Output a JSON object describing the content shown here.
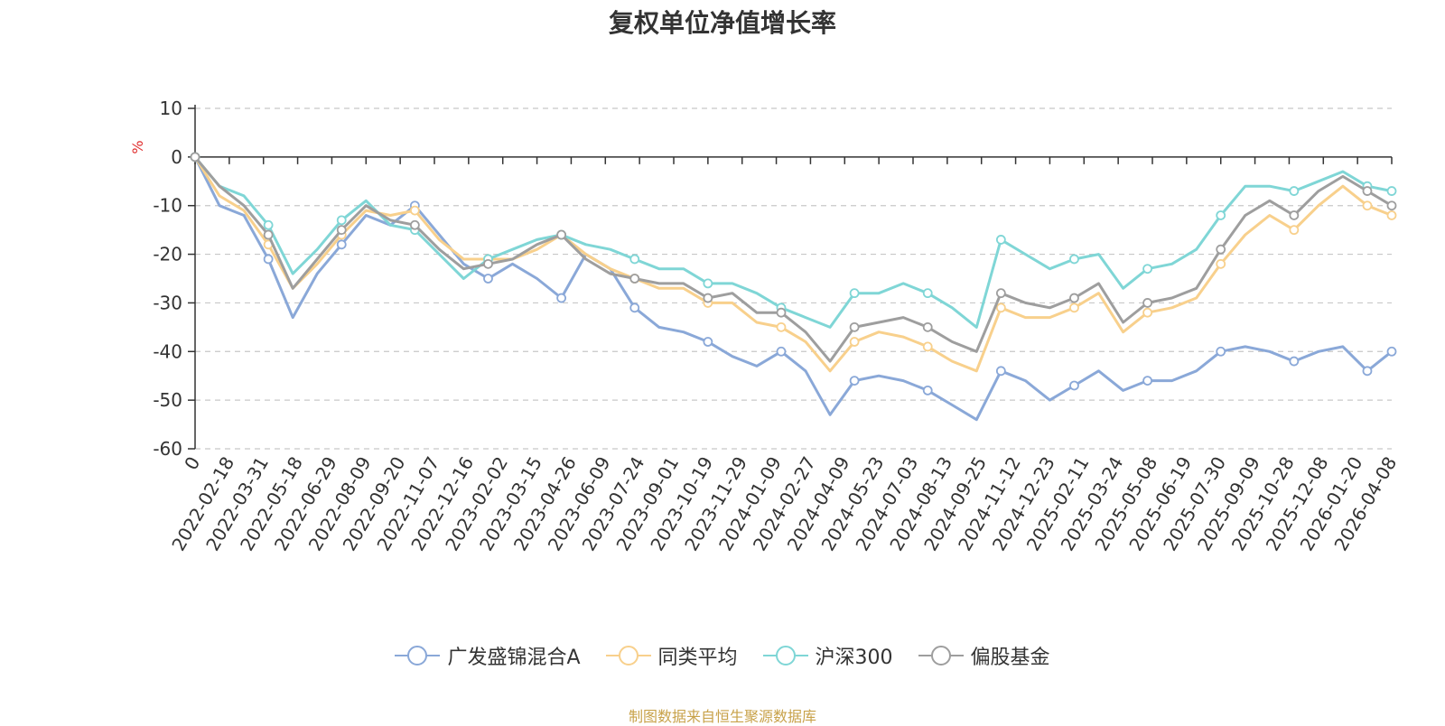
{
  "chart_data": {
    "type": "line",
    "title": "复权单位净值增长率",
    "ylabel": "%",
    "ylim": [
      -60,
      10
    ],
    "yticks": [
      10,
      0,
      -10,
      -20,
      -30,
      -40,
      -50,
      -60
    ],
    "x_tick_labels": [
      "0",
      "2022-02-18",
      "2022-03-31",
      "2022-05-18",
      "2022-06-29",
      "2022-08-09",
      "2022-09-20",
      "2022-11-07",
      "2022-12-16",
      "2023-02-02",
      "2023-03-15",
      "2023-04-26",
      "2023-06-09",
      "2023-07-24",
      "2023-09-01",
      "2023-10-19",
      "2023-11-29",
      "2024-01-09",
      "2024-02-27",
      "2024-04-09",
      "2024-05-23",
      "2024-07-03",
      "2024-08-13",
      "2024-09-25",
      "2024-11-12",
      "2024-12-23",
      "2025-02-11",
      "2025-03-24",
      "2025-05-08",
      "2025-06-19",
      "2025-07-30",
      "2025-09-09",
      "2025-10-28",
      "2025-12-08",
      "2026-01-20",
      "2026-04-08"
    ],
    "grid": "horizontal dashed",
    "legend_position": "bottom",
    "series": [
      {
        "name": "广发盛锦混合A",
        "color": "#8aa8d8",
        "values": [
          0,
          -10,
          -12,
          -21,
          -33,
          -24,
          -18,
          -12,
          -14,
          -10,
          -16,
          -22,
          -25,
          -22,
          -25,
          -29,
          -20,
          -23,
          -31,
          -35,
          -36,
          -38,
          -41,
          -43,
          -40,
          -44,
          -53,
          -46,
          -45,
          -46,
          -48,
          -51,
          -54,
          -44,
          -46,
          -50,
          -47,
          -44,
          -48,
          -46,
          -46,
          -44,
          -40,
          -39,
          -40,
          -42,
          -40,
          -39,
          -44,
          -40
        ]
      },
      {
        "name": "同类平均",
        "color": "#f8d08c",
        "values": [
          0,
          -8,
          -11,
          -18,
          -27,
          -22,
          -16,
          -11,
          -12,
          -11,
          -17,
          -21,
          -21,
          -21,
          -19,
          -16,
          -20,
          -23,
          -25,
          -27,
          -27,
          -30,
          -30,
          -34,
          -35,
          -38,
          -44,
          -38,
          -36,
          -37,
          -39,
          -42,
          -44,
          -31,
          -33,
          -33,
          -31,
          -28,
          -36,
          -32,
          -31,
          -29,
          -22,
          -16,
          -12,
          -15,
          -10,
          -6,
          -10,
          -12
        ]
      },
      {
        "name": "沪深300",
        "color": "#7fd6d6",
        "values": [
          0,
          -6,
          -8,
          -14,
          -24,
          -19,
          -13,
          -9,
          -14,
          -15,
          -20,
          -25,
          -21,
          -19,
          -17,
          -16,
          -18,
          -19,
          -21,
          -23,
          -23,
          -26,
          -26,
          -28,
          -31,
          -33,
          -35,
          -28,
          -28,
          -26,
          -28,
          -31,
          -35,
          -17,
          -20,
          -23,
          -21,
          -20,
          -27,
          -23,
          -22,
          -19,
          -12,
          -6,
          -6,
          -7,
          -5,
          -3,
          -6,
          -7
        ]
      },
      {
        "name": "偏股基金",
        "color": "#9e9e9e",
        "values": [
          0,
          -6,
          -10,
          -16,
          -27,
          -21,
          -15,
          -10,
          -13,
          -14,
          -19,
          -23,
          -22,
          -21,
          -18,
          -16,
          -21,
          -24,
          -25,
          -26,
          -26,
          -29,
          -28,
          -32,
          -32,
          -36,
          -42,
          -35,
          -34,
          -33,
          -35,
          -38,
          -40,
          -28,
          -30,
          -31,
          -29,
          -26,
          -34,
          -30,
          -29,
          -27,
          -19,
          -12,
          -9,
          -12,
          -7,
          -4,
          -7,
          -10
        ]
      }
    ],
    "source": "制图数据来自恒生聚源数据库"
  }
}
